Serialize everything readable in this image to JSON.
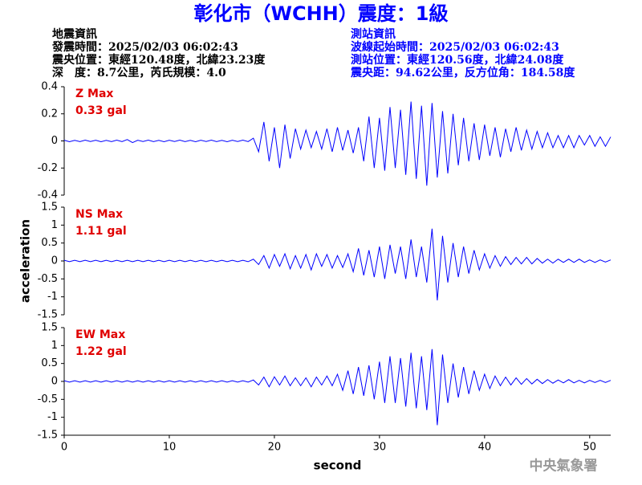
{
  "header": {
    "title": "彰化市（WCHH）震度：1級",
    "left": [
      "地震資訊",
      "發震時間：2025/02/03 06:02:43",
      "震央位置：東經120.48度，北緯23.23度",
      "深　度：8.7公里，芮氏規模：4.0"
    ],
    "right": [
      "測站資訊",
      "波線起始時間：2025/02/03 06:02:43",
      "測站位置：東經120.56度，北緯24.08度",
      "震央距：94.62公里，反方位角：184.58度"
    ],
    "footer": "中央氣象署"
  },
  "chart_data": [
    {
      "type": "line",
      "label": "Z Max",
      "max_label": "0.33 gal",
      "color": "#0000ff",
      "xlim": [
        0,
        52
      ],
      "ylim": [
        -0.4,
        0.4
      ],
      "yticks": [
        -0.4,
        -0.2,
        0,
        0.2,
        0.4
      ],
      "x": [
        0,
        0.5,
        1,
        1.5,
        2,
        2.5,
        3,
        3.5,
        4,
        4.5,
        5,
        5.5,
        6,
        6.5,
        7,
        7.5,
        8,
        8.5,
        9,
        9.5,
        10,
        10.5,
        11,
        11.5,
        12,
        12.5,
        13,
        13.5,
        14,
        14.5,
        15,
        15.5,
        16,
        16.5,
        17,
        17.5,
        18,
        18.5,
        19,
        19.5,
        20,
        20.5,
        21,
        21.5,
        22,
        22.5,
        23,
        23.5,
        24,
        24.5,
        25,
        25.5,
        26,
        26.5,
        27,
        27.5,
        28,
        28.5,
        29,
        29.5,
        30,
        30.5,
        31,
        31.5,
        32,
        32.5,
        33,
        33.5,
        34,
        34.5,
        35,
        35.5,
        36,
        36.5,
        37,
        37.5,
        38,
        38.5,
        39,
        39.5,
        40,
        40.5,
        41,
        41.5,
        42,
        42.5,
        43,
        43.5,
        44,
        44.5,
        45,
        45.5,
        46,
        46.5,
        47,
        47.5,
        48,
        48.5,
        49,
        49.5,
        50,
        50.5,
        51,
        51.5,
        52
      ],
      "values": [
        0.005,
        -0.006,
        0.004,
        -0.005,
        0.006,
        -0.004,
        0.005,
        -0.006,
        0.004,
        -0.005,
        0.006,
        -0.005,
        0.01,
        -0.012,
        0.005,
        -0.004,
        0.006,
        -0.005,
        0.004,
        -0.006,
        0.005,
        -0.004,
        0.006,
        -0.005,
        0.004,
        -0.006,
        0.005,
        -0.004,
        0.006,
        -0.005,
        0.004,
        -0.006,
        0.005,
        -0.004,
        0.006,
        -0.005,
        0.02,
        -0.08,
        0.14,
        -0.15,
        0.1,
        -0.2,
        0.12,
        -0.13,
        0.09,
        -0.06,
        0.08,
        -0.05,
        0.07,
        -0.06,
        0.09,
        -0.08,
        0.1,
        -0.07,
        0.08,
        -0.09,
        0.1,
        -0.15,
        0.18,
        -0.2,
        0.17,
        -0.22,
        0.25,
        -0.2,
        0.23,
        -0.25,
        0.29,
        -0.28,
        0.26,
        -0.33,
        0.28,
        -0.27,
        0.22,
        -0.24,
        0.2,
        -0.18,
        0.17,
        -0.15,
        0.13,
        -0.14,
        0.12,
        -0.11,
        0.1,
        -0.12,
        0.09,
        -0.08,
        0.1,
        -0.07,
        0.08,
        -0.06,
        0.07,
        -0.05,
        0.06,
        -0.05,
        0.04,
        -0.05,
        0.04,
        -0.05,
        0.04,
        -0.03,
        0.04,
        -0.04,
        0.03,
        -0.04,
        0.03
      ]
    },
    {
      "type": "line",
      "label": "NS Max",
      "max_label": "1.11 gal",
      "color": "#0000ff",
      "ylabel": "acceleration",
      "xlim": [
        0,
        52
      ],
      "ylim": [
        -1.5,
        1.5
      ],
      "yticks": [
        -1.5,
        -1,
        -0.5,
        0,
        0.5,
        1,
        1.5
      ],
      "x": [
        0,
        0.5,
        1,
        1.5,
        2,
        2.5,
        3,
        3.5,
        4,
        4.5,
        5,
        5.5,
        6,
        6.5,
        7,
        7.5,
        8,
        8.5,
        9,
        9.5,
        10,
        10.5,
        11,
        11.5,
        12,
        12.5,
        13,
        13.5,
        14,
        14.5,
        15,
        15.5,
        16,
        16.5,
        17,
        17.5,
        18,
        18.5,
        19,
        19.5,
        20,
        20.5,
        21,
        21.5,
        22,
        22.5,
        23,
        23.5,
        24,
        24.5,
        25,
        25.5,
        26,
        26.5,
        27,
        27.5,
        28,
        28.5,
        29,
        29.5,
        30,
        30.5,
        31,
        31.5,
        32,
        32.5,
        33,
        33.5,
        34,
        34.5,
        35,
        35.5,
        36,
        36.5,
        37,
        37.5,
        38,
        38.5,
        39,
        39.5,
        40,
        40.5,
        41,
        41.5,
        42,
        42.5,
        43,
        43.5,
        44,
        44.5,
        45,
        45.5,
        46,
        46.5,
        47,
        47.5,
        48,
        48.5,
        49,
        49.5,
        50,
        50.5,
        51,
        51.5,
        52
      ],
      "values": [
        0.02,
        -0.02,
        0.02,
        -0.02,
        0.02,
        -0.02,
        0.02,
        -0.02,
        0.02,
        -0.02,
        0.02,
        -0.02,
        0.02,
        -0.02,
        0.02,
        -0.02,
        0.02,
        -0.02,
        0.02,
        -0.02,
        0.02,
        -0.02,
        0.02,
        -0.02,
        0.02,
        -0.02,
        0.02,
        -0.02,
        0.02,
        -0.02,
        0.02,
        -0.02,
        0.02,
        -0.02,
        0.02,
        -0.02,
        0.05,
        -0.1,
        0.15,
        -0.2,
        0.18,
        -0.15,
        0.2,
        -0.22,
        0.15,
        -0.2,
        0.18,
        -0.25,
        0.2,
        -0.15,
        0.18,
        -0.2,
        0.15,
        -0.18,
        0.2,
        -0.3,
        0.35,
        -0.4,
        0.3,
        -0.45,
        0.4,
        -0.5,
        0.45,
        -0.35,
        0.4,
        -0.5,
        0.6,
        -0.45,
        0.4,
        -0.6,
        0.9,
        -1.1,
        0.7,
        -0.6,
        0.5,
        -0.45,
        0.4,
        -0.35,
        0.3,
        -0.25,
        0.2,
        -0.2,
        0.15,
        -0.15,
        0.12,
        -0.1,
        0.1,
        -0.08,
        0.1,
        -0.08,
        0.07,
        -0.06,
        0.05,
        -0.06,
        0.05,
        -0.04,
        0.05,
        -0.04,
        0.05,
        -0.04,
        0.03,
        -0.04,
        0.03,
        -0.03,
        0.03
      ]
    },
    {
      "type": "line",
      "label": "EW Max",
      "max_label": "1.22 gal",
      "color": "#0000ff",
      "xlabel": "second",
      "xlim": [
        0,
        52
      ],
      "xticks": [
        0,
        10,
        20,
        30,
        40,
        50
      ],
      "ylim": [
        -1.5,
        1.5
      ],
      "yticks": [
        -1.5,
        -1,
        -0.5,
        0,
        0.5,
        1,
        1.5
      ],
      "x": [
        0,
        0.5,
        1,
        1.5,
        2,
        2.5,
        3,
        3.5,
        4,
        4.5,
        5,
        5.5,
        6,
        6.5,
        7,
        7.5,
        8,
        8.5,
        9,
        9.5,
        10,
        10.5,
        11,
        11.5,
        12,
        12.5,
        13,
        13.5,
        14,
        14.5,
        15,
        15.5,
        16,
        16.5,
        17,
        17.5,
        18,
        18.5,
        19,
        19.5,
        20,
        20.5,
        21,
        21.5,
        22,
        22.5,
        23,
        23.5,
        24,
        24.5,
        25,
        25.5,
        26,
        26.5,
        27,
        27.5,
        28,
        28.5,
        29,
        29.5,
        30,
        30.5,
        31,
        31.5,
        32,
        32.5,
        33,
        33.5,
        34,
        34.5,
        35,
        35.5,
        36,
        36.5,
        37,
        37.5,
        38,
        38.5,
        39,
        39.5,
        40,
        40.5,
        41,
        41.5,
        42,
        42.5,
        43,
        43.5,
        44,
        44.5,
        45,
        45.5,
        46,
        46.5,
        47,
        47.5,
        48,
        48.5,
        49,
        49.5,
        50,
        50.5,
        51,
        51.5,
        52
      ],
      "values": [
        0.02,
        -0.02,
        0.02,
        -0.02,
        0.02,
        -0.02,
        0.02,
        -0.02,
        0.02,
        -0.02,
        0.02,
        -0.02,
        0.02,
        -0.02,
        0.02,
        -0.02,
        0.02,
        -0.02,
        0.02,
        -0.02,
        0.02,
        -0.02,
        0.02,
        -0.02,
        0.02,
        -0.02,
        0.02,
        -0.02,
        0.02,
        -0.02,
        0.02,
        -0.02,
        0.02,
        -0.02,
        0.02,
        -0.02,
        0.04,
        -0.1,
        0.12,
        -0.15,
        0.13,
        -0.1,
        0.15,
        -0.12,
        0.1,
        -0.12,
        0.1,
        -0.15,
        0.12,
        -0.1,
        0.15,
        -0.12,
        0.2,
        -0.25,
        0.3,
        -0.35,
        0.4,
        -0.4,
        0.45,
        -0.5,
        0.55,
        -0.6,
        0.7,
        -0.6,
        0.65,
        -0.7,
        0.8,
        -0.75,
        0.7,
        -0.8,
        0.9,
        -1.22,
        0.75,
        -0.6,
        0.5,
        -0.45,
        0.4,
        -0.35,
        0.3,
        -0.25,
        0.2,
        -0.2,
        0.15,
        -0.12,
        0.12,
        -0.1,
        0.1,
        -0.08,
        0.08,
        -0.07,
        0.06,
        -0.06,
        0.05,
        -0.05,
        0.04,
        -0.04,
        0.05,
        -0.04,
        0.03,
        -0.04,
        0.03,
        -0.03,
        0.03,
        -0.03,
        0.03
      ]
    }
  ]
}
